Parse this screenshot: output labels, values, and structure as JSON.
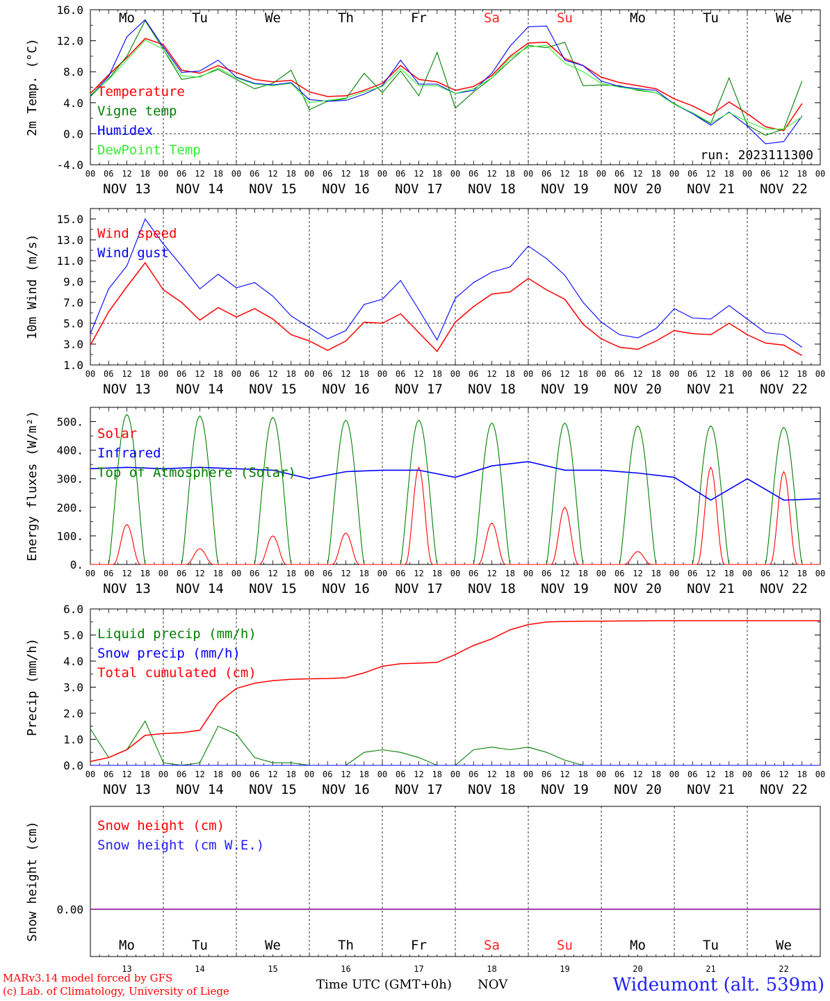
{
  "run_label": "run: 2023111300",
  "days": [
    "Mo",
    "Tu",
    "We",
    "Th",
    "Fr",
    "Sa",
    "Su",
    "Mo",
    "Tu",
    "We"
  ],
  "weekend_color": "#ff2020",
  "date_labels": [
    "NOV 13",
    "NOV 14",
    "NOV 15",
    "NOV 16",
    "NOV 17",
    "NOV 18",
    "NOV 19",
    "NOV 20",
    "NOV 21",
    "NOV 22"
  ],
  "hour_ticks": [
    "00",
    "06",
    "12",
    "18"
  ],
  "bottom_dates": [
    "13",
    "14",
    "15",
    "16",
    "17",
    "18",
    "19",
    "20",
    "21",
    "22"
  ],
  "footer": {
    "model_line1": "MARv3.14 model forced by GFS",
    "model_line2": "(c) Lab. of Climatology, University of Liege",
    "xlabel": "Time UTC (GMT+0h)",
    "month": "NOV",
    "station": "Wideumont (alt. 539m)"
  },
  "chart_data": [
    {
      "type": "line",
      "ylabel": "2m Temp. (°C)",
      "ylim": [
        -4,
        16
      ],
      "yticks": [
        "-4.0",
        "0.0",
        "4.0",
        "8.0",
        "12.0",
        "16.0"
      ],
      "yticks_values": [
        -4,
        0,
        4,
        8,
        12,
        16
      ],
      "reference_line": 0,
      "x_hours": [
        0,
        6,
        12,
        18,
        24,
        30,
        36,
        42,
        48,
        54,
        60,
        66,
        72,
        78,
        84,
        90,
        96,
        102,
        108,
        114,
        120,
        126,
        132,
        138,
        144,
        150,
        156,
        162,
        168,
        174,
        180,
        186,
        192,
        198,
        204,
        210,
        216,
        222,
        228,
        234
      ],
      "series": [
        {
          "name": "Temperature",
          "color": "#ff0000",
          "values": [
            5.2,
            7.6,
            9.8,
            12.3,
            11.5,
            8.2,
            7.8,
            8.8,
            7.9,
            7.0,
            6.7,
            6.9,
            5.4,
            4.8,
            4.9,
            5.6,
            6.5,
            8.8,
            7.0,
            6.7,
            5.6,
            6.1,
            7.5,
            10.0,
            11.7,
            11.8,
            9.7,
            8.8,
            7.3,
            6.6,
            6.2,
            5.8,
            4.5,
            3.6,
            2.4,
            4.1,
            2.6,
            0.9,
            0.4,
            3.9
          ]
        },
        {
          "name": "Vigne temp",
          "color": "#008000",
          "values": [
            4.8,
            7.1,
            10.0,
            14.6,
            10.9,
            7.0,
            7.4,
            8.3,
            7.0,
            5.8,
            6.5,
            8.2,
            3.1,
            4.2,
            4.5,
            7.8,
            5.3,
            8.1,
            4.9,
            10.5,
            3.3,
            5.4,
            7.2,
            9.4,
            11.4,
            11.1,
            11.8,
            6.2,
            6.3,
            6.2,
            5.6,
            5.3,
            3.9,
            2.6,
            1.3,
            7.2,
            1.1,
            -0.2,
            0.6,
            6.8
          ]
        },
        {
          "name": "Humidex",
          "color": "#0000ff",
          "values": [
            4.9,
            7.4,
            12.5,
            14.7,
            11.2,
            7.9,
            8.1,
            9.5,
            7.3,
            6.5,
            6.3,
            6.6,
            4.4,
            4.2,
            4.3,
            5.1,
            6.2,
            9.5,
            6.4,
            6.4,
            5.2,
            5.6,
            7.8,
            11.3,
            13.8,
            13.9,
            9.5,
            8.8,
            6.8,
            6.1,
            5.8,
            5.6,
            3.8,
            2.6,
            1.1,
            2.8,
            1.0,
            -1.3,
            -1.0,
            2.3
          ]
        },
        {
          "name": "DewPoint Temp",
          "color": "#33ee33",
          "values": [
            5.0,
            7.0,
            9.5,
            12.1,
            10.9,
            7.5,
            7.3,
            8.5,
            7.2,
            6.4,
            6.2,
            6.5,
            4.0,
            4.3,
            4.6,
            5.4,
            6.1,
            8.4,
            6.2,
            6.2,
            5.2,
            5.8,
            7.2,
            9.8,
            11.2,
            11.4,
            9.1,
            8.0,
            6.5,
            6.0,
            5.7,
            5.3,
            3.8,
            2.7,
            1.4,
            2.7,
            1.6,
            0.6,
            0.6,
            2.2
          ]
        }
      ]
    },
    {
      "type": "line",
      "ylabel": "10m Wind (m/s)",
      "ylim": [
        1,
        16
      ],
      "yticks": [
        "1.0",
        "3.0",
        "5.0",
        "7.0",
        "9.0",
        "11.0",
        "13.0",
        "15.0"
      ],
      "yticks_values": [
        1,
        3,
        5,
        7,
        9,
        11,
        13,
        15
      ],
      "reference_line": 5,
      "x_hours": [
        0,
        6,
        12,
        18,
        24,
        30,
        36,
        42,
        48,
        54,
        60,
        66,
        72,
        78,
        84,
        90,
        96,
        102,
        108,
        114,
        120,
        126,
        132,
        138,
        144,
        150,
        156,
        162,
        168,
        174,
        180,
        186,
        192,
        198,
        204,
        210,
        216,
        222,
        228,
        234
      ],
      "series": [
        {
          "name": "Wind speed",
          "color": "#ff0000",
          "values": [
            2.9,
            6.1,
            8.5,
            10.8,
            8.2,
            7.0,
            5.3,
            6.5,
            5.6,
            6.4,
            5.4,
            3.9,
            3.3,
            2.4,
            3.3,
            5.1,
            5.0,
            5.9,
            4.1,
            2.3,
            5.1,
            6.6,
            7.8,
            8.0,
            9.3,
            8.2,
            7.3,
            4.9,
            3.5,
            2.7,
            2.5,
            3.3,
            4.3,
            4.0,
            3.9,
            5.0,
            3.9,
            3.1,
            2.9,
            1.9
          ]
        },
        {
          "name": "Wind gust",
          "color": "#0000ff",
          "values": [
            4.0,
            8.3,
            10.5,
            15.0,
            12.6,
            10.5,
            8.3,
            9.7,
            8.4,
            8.9,
            7.6,
            5.7,
            4.6,
            3.5,
            4.3,
            6.8,
            7.3,
            9.1,
            6.3,
            3.4,
            7.4,
            8.9,
            9.9,
            10.4,
            12.4,
            11.2,
            9.6,
            7.0,
            5.1,
            3.9,
            3.6,
            4.5,
            6.4,
            5.5,
            5.4,
            6.7,
            5.4,
            4.1,
            3.9,
            2.7
          ]
        }
      ]
    },
    {
      "type": "line",
      "ylabel": "Energy fluxes (W/m²)",
      "ylim": [
        0,
        550
      ],
      "yticks": [
        "0.",
        "100.",
        "200.",
        "300.",
        "400.",
        "500."
      ],
      "yticks_values": [
        0,
        100,
        200,
        300,
        400,
        500
      ],
      "series": [
        {
          "name": "Solar",
          "color": "#ff0000",
          "peaks": [
            140,
            55,
            100,
            110,
            340,
            145,
            200,
            45,
            340,
            325
          ],
          "peak_hours": [
            12,
            12,
            12,
            12,
            12,
            12,
            12,
            12,
            12,
            12
          ]
        },
        {
          "name": "Infrared",
          "color": "#0000ff",
          "x_hours": [
            0,
            12,
            24,
            36,
            48,
            60,
            72,
            84,
            96,
            108,
            120,
            132,
            144,
            156,
            168,
            180,
            192,
            204,
            216,
            228,
            240
          ],
          "values": [
            335,
            340,
            335,
            340,
            335,
            330,
            300,
            325,
            330,
            330,
            305,
            345,
            360,
            330,
            330,
            320,
            305,
            225,
            300,
            225,
            230
          ]
        },
        {
          "name": "Top of Atmosphere (Solar)",
          "color": "#008000",
          "peaks": [
            525,
            520,
            515,
            505,
            505,
            495,
            495,
            485,
            485,
            480
          ],
          "peak_hours": [
            12,
            12,
            12,
            12,
            12,
            12,
            12,
            12,
            12,
            12
          ]
        }
      ]
    },
    {
      "type": "line",
      "ylabel": "Precip (mm/h)",
      "ylim": [
        0,
        6
      ],
      "yticks": [
        "0.0",
        "1.0",
        "2.0",
        "3.0",
        "4.0",
        "5.0",
        "6.0"
      ],
      "yticks_values": [
        0,
        1,
        2,
        3,
        4,
        5,
        6
      ],
      "x_hours": [
        0,
        6,
        12,
        18,
        24,
        30,
        36,
        42,
        48,
        54,
        60,
        66,
        72,
        78,
        84,
        90,
        96,
        102,
        108,
        114,
        120,
        126,
        132,
        138,
        144,
        150,
        156,
        162,
        168,
        174,
        180,
        186,
        192,
        198,
        204,
        210,
        216,
        222,
        228,
        234,
        240
      ],
      "series": [
        {
          "name": "Liquid precip (mm/h)",
          "color": "#008000",
          "values": [
            1.4,
            0.3,
            0.6,
            1.7,
            0.1,
            0.0,
            0.1,
            1.5,
            1.2,
            0.3,
            0.1,
            0.1,
            0.0,
            0.0,
            0.0,
            0.5,
            0.6,
            0.5,
            0.3,
            0.0,
            0.0,
            0.6,
            0.7,
            0.6,
            0.7,
            0.5,
            0.2,
            0.0,
            0.0,
            0.0,
            0.0,
            0.0,
            0.0,
            0.0,
            0.0,
            0.0,
            0.0,
            0.0,
            0.0,
            0.0,
            0.0
          ]
        },
        {
          "name": "Snow precip (mm/h)",
          "color": "#0000ff",
          "values": [
            0,
            0,
            0,
            0,
            0,
            0,
            0,
            0,
            0,
            0,
            0,
            0,
            0,
            0,
            0,
            0,
            0,
            0,
            0,
            0,
            0,
            0,
            0,
            0,
            0,
            0,
            0,
            0,
            0,
            0,
            0,
            0,
            0,
            0,
            0,
            0,
            0,
            0,
            0,
            0,
            0
          ]
        },
        {
          "name": "Total cumulated (cm)",
          "color": "#ff0000",
          "values": [
            0.15,
            0.3,
            0.6,
            1.15,
            1.22,
            1.25,
            1.35,
            2.4,
            2.95,
            3.15,
            3.25,
            3.3,
            3.32,
            3.33,
            3.36,
            3.55,
            3.8,
            3.9,
            3.92,
            3.95,
            4.25,
            4.6,
            4.85,
            5.2,
            5.4,
            5.5,
            5.52,
            5.53,
            5.53,
            5.54,
            5.54,
            5.55,
            5.55,
            5.55,
            5.55,
            5.55,
            5.55,
            5.55,
            5.55,
            5.55,
            5.55
          ]
        }
      ]
    },
    {
      "type": "line",
      "ylabel": "Snow height (cm)",
      "yticks": [
        "0.00"
      ],
      "yticks_values": [
        0
      ],
      "series": [
        {
          "name": "Snow height (cm)",
          "color": "#ff0000",
          "values": [
            0,
            0
          ]
        },
        {
          "name": "Snow height (cm W.E.)",
          "color": "#1f1fff",
          "values": [
            0,
            0
          ]
        }
      ],
      "line_color": "#800080"
    }
  ]
}
